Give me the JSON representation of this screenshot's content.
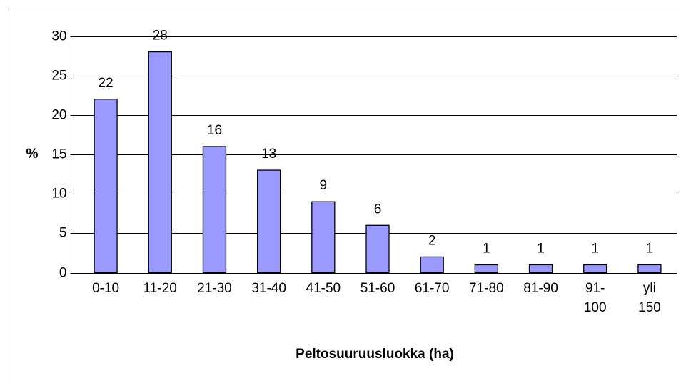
{
  "chart_data": {
    "type": "bar",
    "categories": [
      "0-10",
      "11-20",
      "21-30",
      "31-40",
      "41-50",
      "51-60",
      "61-70",
      "71-80",
      "81-90",
      "91-\n100",
      "yli\n150"
    ],
    "values": [
      22,
      28,
      16,
      13,
      9,
      6,
      2,
      1,
      1,
      1,
      1
    ],
    "color": "#9999ff",
    "xlabel": "Peltosuuruusluokka (ha)",
    "ylabel": "%",
    "ylim": [
      0,
      30
    ],
    "yticks": [
      0,
      5,
      10,
      15,
      20,
      25,
      30
    ],
    "grid": true
  }
}
